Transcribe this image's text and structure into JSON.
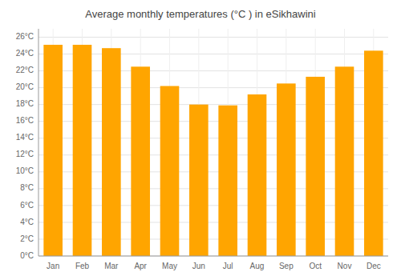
{
  "chart_data": {
    "type": "bar",
    "title": "Average monthly temperatures (°C ) in eSikhawini",
    "categories": [
      "Jan",
      "Feb",
      "Mar",
      "Apr",
      "May",
      "Jun",
      "Jul",
      "Aug",
      "Sep",
      "Oct",
      "Nov",
      "Dec"
    ],
    "values": [
      25.1,
      25.1,
      24.7,
      22.5,
      20.2,
      18.0,
      17.9,
      19.2,
      20.5,
      21.3,
      22.5,
      24.4
    ],
    "color": "#FFA500",
    "ylim": [
      0,
      27
    ],
    "yticks": [
      {
        "value": 0,
        "label": "0°C"
      },
      {
        "value": 2,
        "label": "2°C"
      },
      {
        "value": 4,
        "label": "4°C"
      },
      {
        "value": 6,
        "label": "6°C"
      },
      {
        "value": 8,
        "label": "8°C"
      },
      {
        "value": 10,
        "label": "10°C"
      },
      {
        "value": 12,
        "label": "12°C"
      },
      {
        "value": 14,
        "label": "14°C"
      },
      {
        "value": 16,
        "label": "16°C"
      },
      {
        "value": 18,
        "label": "18°C"
      },
      {
        "value": 20,
        "label": "20°C"
      },
      {
        "value": 22,
        "label": "22°C"
      },
      {
        "value": 24,
        "label": "24°C"
      },
      {
        "value": 26,
        "label": "26°C"
      }
    ],
    "grid": true
  }
}
